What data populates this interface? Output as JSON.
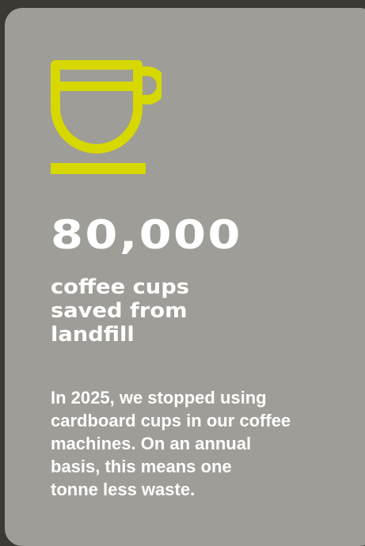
{
  "card": {
    "icon": "coffee-cup-icon",
    "accent_color": "#d6d800",
    "background_color": "#9f9d97",
    "stat_value": "80,000",
    "stat_caption_lines": [
      "coffee cups",
      "saved from",
      "landfill"
    ],
    "description_lines": [
      "In 2025, we stopped using",
      "cardboard cups in our coffee",
      "machines. On an annual",
      "basis, this means one",
      "tonne less waste."
    ]
  }
}
